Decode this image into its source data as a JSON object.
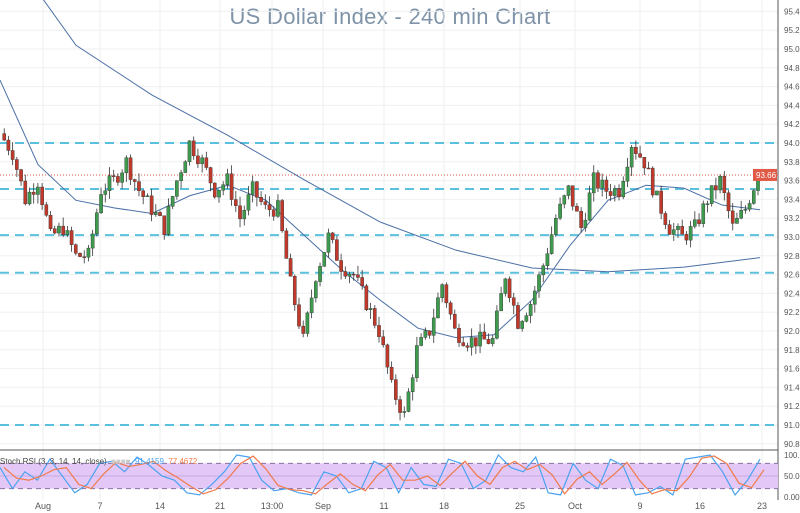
{
  "title": "US Dollar Index - 240 min Chart",
  "chart_data": {
    "type": "candlestick",
    "title": "US Dollar Index - 240 min Chart",
    "ylim": [
      90.8,
      95.4
    ],
    "y_ticks": [
      "95.40",
      "95.20",
      "95.00",
      "94.80",
      "94.60",
      "94.40",
      "94.20",
      "94.00",
      "93.80",
      "93.60",
      "93.40",
      "93.20",
      "93.00",
      "92.80",
      "92.60",
      "92.40",
      "92.20",
      "92.00",
      "91.80",
      "91.60",
      "91.40",
      "91.20",
      "91.00",
      "90.80"
    ],
    "x_ticks": [
      "Aug",
      "7",
      "14",
      "21",
      "13:00",
      "Sep",
      "11",
      "18",
      "25",
      "Oct",
      "9",
      "16",
      "23"
    ],
    "grid": true,
    "closes": [
      94.1,
      93.9,
      93.4,
      93.6,
      93.0,
      93.1,
      92.8,
      92.8,
      93.5,
      93.6,
      93.8,
      93.5,
      93.3,
      93.1,
      93.6,
      94.0,
      93.8,
      93.5,
      93.6,
      93.2,
      93.5,
      93.3,
      93.3,
      92.5,
      91.9,
      92.6,
      93.0,
      92.7,
      92.6,
      92.3,
      92.0,
      91.4,
      91.1,
      91.8,
      92.0,
      92.5,
      92.0,
      91.9,
      91.9,
      91.9,
      92.6,
      92.1,
      92.3,
      92.7,
      93.2,
      93.5,
      93.1,
      93.6,
      93.5,
      93.5,
      94.0,
      93.8,
      93.4,
      93.1,
      93.0,
      93.1,
      93.4,
      93.6,
      93.1,
      93.3,
      93.66
    ],
    "ma_long": [
      96.17,
      95.04,
      94.51,
      94.08,
      93.61,
      93.16,
      92.86,
      92.67,
      92.63,
      92.68,
      92.78
    ],
    "ma_short": [
      94.67,
      93.77,
      93.39,
      93.31,
      93.25,
      93.44,
      93.55,
      93.39,
      93.02,
      92.65,
      92.33,
      92.03,
      91.93,
      91.96,
      92.33,
      92.91,
      93.39,
      93.55,
      93.52,
      93.34,
      93.29
    ],
    "levels": [
      94.0,
      93.51,
      93.02,
      92.62,
      91.0
    ],
    "last_price": "93.66",
    "last_price_value": 93.66,
    "colors": {
      "up": "#3d9b4e",
      "down": "#c0392b",
      "ma": "#4a6fa5",
      "level": "#5bc0de",
      "last": "#e05a47",
      "band": "#e3c8f7"
    },
    "indicator": {
      "label": "Stoch RSI (3, 3, 14, 14, close)",
      "k_value": "91.4159",
      "d_value": "77.4672",
      "y_ticks": [
        "100.000",
        "50.0000",
        "0.0000"
      ],
      "band": [
        20,
        80
      ],
      "k": [
        70,
        20,
        60,
        40,
        90,
        50,
        10,
        30,
        80,
        85,
        60,
        95,
        75,
        50,
        40,
        10,
        5,
        30,
        60,
        100,
        95,
        40,
        15,
        20,
        10,
        5,
        60,
        50,
        10,
        20,
        85,
        70,
        10,
        70,
        30,
        25,
        90,
        80,
        20,
        40,
        100,
        70,
        60,
        95,
        10,
        5,
        80,
        40,
        20,
        90,
        75,
        5,
        10,
        25,
        5,
        90,
        95,
        100,
        60,
        5,
        40,
        90
      ],
      "colors": {
        "k": "#4aa3f0",
        "d": "#f07a4a"
      }
    }
  }
}
